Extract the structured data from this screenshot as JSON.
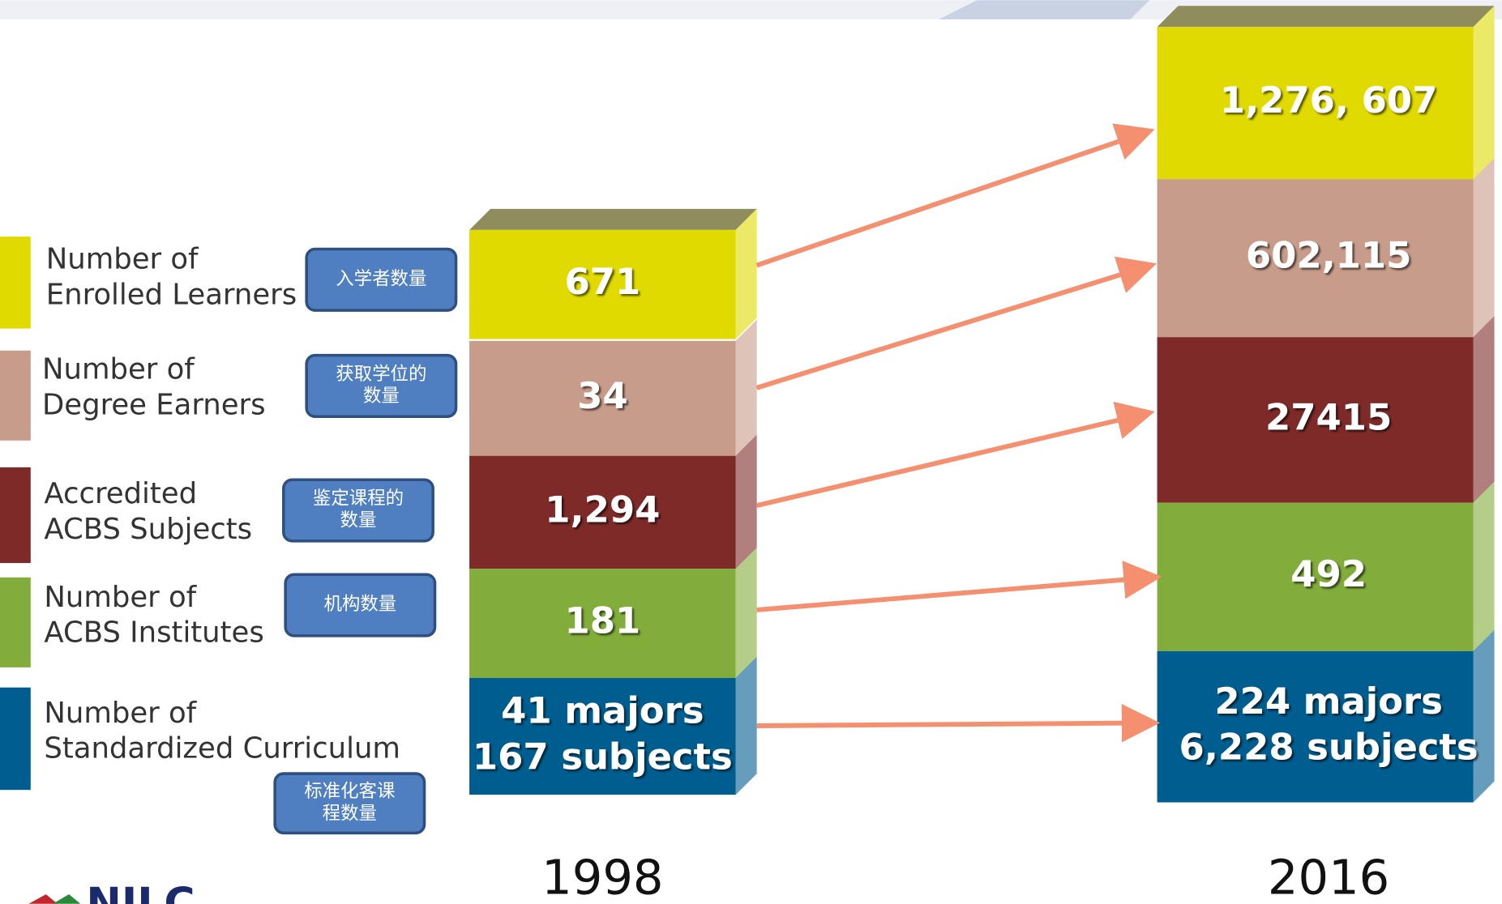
{
  "legend": [
    {
      "label": [
        "Number of",
        "Enrolled Learners"
      ],
      "note": [
        "入学者数量"
      ],
      "color": "#e0da00"
    },
    {
      "label": [
        "Number of",
        "Degree Earners"
      ],
      "note": [
        "获取学位的",
        "数量"
      ],
      "color": "#c89c8a"
    },
    {
      "label": [
        "Accredited",
        "ACBS Subjects"
      ],
      "note": [
        "鉴定课程的",
        "数量"
      ],
      "color": "#7e2a28"
    },
    {
      "label": [
        "Number of",
        "ACBS Institutes"
      ],
      "note": [
        "机构数量"
      ],
      "color": "#82ad3b"
    },
    {
      "label": [
        "Number of",
        "Standardized Curriculum"
      ],
      "note": [
        "标准化客课",
        "程数量"
      ],
      "color": "#005d8f"
    }
  ],
  "columns": [
    {
      "year": "1998",
      "blocks": [
        [
          "671"
        ],
        [
          "34"
        ],
        [
          "1,294"
        ],
        [
          "181"
        ],
        [
          "41 majors",
          "167 subjects"
        ]
      ]
    },
    {
      "year": "2016",
      "blocks": [
        [
          "1,276, 607"
        ],
        [
          "602,115"
        ],
        [
          "27415"
        ],
        [
          "492"
        ],
        [
          "224 majors",
          "6,228 subjects"
        ]
      ]
    }
  ],
  "logo": "NILC"
}
